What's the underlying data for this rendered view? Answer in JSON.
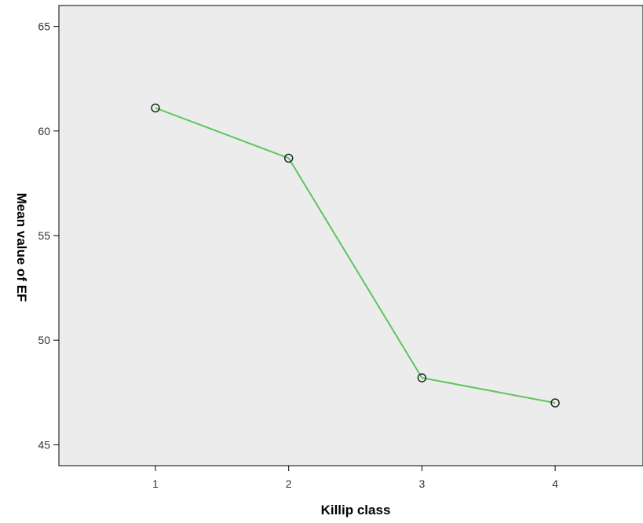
{
  "chart_data": {
    "type": "line",
    "title": "",
    "xlabel": "Killip class",
    "ylabel": "Mean value of EF",
    "categories": [
      "1",
      "2",
      "3",
      "4"
    ],
    "series": [
      {
        "values": [
          61.1,
          58.7,
          48.2,
          47.0
        ]
      }
    ],
    "ylim": [
      44,
      66
    ],
    "yticks": [
      45,
      50,
      55,
      60,
      65
    ],
    "ytick_labels": [
      "45",
      "50",
      "55",
      "60",
      "65"
    ],
    "grid": false,
    "legend": "none",
    "colors": {
      "plot_background": "#ececec",
      "line": "#5fc45f",
      "marker_edge": "#1a1a1a",
      "axis": "#000000"
    }
  }
}
